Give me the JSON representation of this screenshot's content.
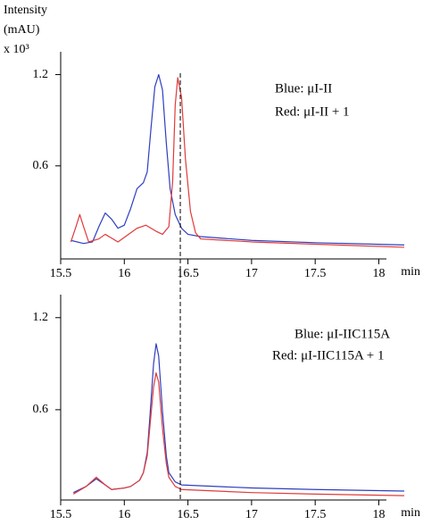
{
  "chart_data": [
    {
      "type": "line",
      "ylabel": [
        "Intensity",
        "(mAU)",
        "x 10³"
      ],
      "xlabel": "min",
      "xlim": [
        15.5,
        18.2
      ],
      "ylim": [
        0,
        1.35
      ],
      "xticks": [
        15.5,
        16,
        16.5,
        17,
        17.5,
        18
      ],
      "yticks": [
        0.6,
        1.2
      ],
      "reference_x": 16.44,
      "series": [
        {
          "name": "Blue: μI-II",
          "color": "#2e3fbf",
          "x": [
            15.58,
            15.68,
            15.75,
            15.8,
            15.85,
            15.9,
            15.95,
            16.0,
            16.05,
            16.1,
            16.15,
            16.18,
            16.21,
            16.24,
            16.27,
            16.3,
            16.33,
            16.36,
            16.4,
            16.45,
            16.5,
            16.6,
            17.0,
            17.5,
            18.2
          ],
          "values": [
            0.11,
            0.09,
            0.1,
            0.2,
            0.29,
            0.25,
            0.19,
            0.21,
            0.32,
            0.45,
            0.49,
            0.56,
            0.85,
            1.12,
            1.2,
            1.1,
            0.75,
            0.45,
            0.28,
            0.19,
            0.15,
            0.135,
            0.11,
            0.095,
            0.08
          ]
        },
        {
          "name": "Red:  μI-II + 1",
          "color": "#e03a3a",
          "x": [
            15.58,
            15.62,
            15.65,
            15.68,
            15.72,
            15.8,
            15.85,
            15.95,
            16.05,
            16.1,
            16.17,
            16.25,
            16.3,
            16.35,
            16.38,
            16.4,
            16.42,
            16.45,
            16.48,
            16.52,
            16.56,
            16.6,
            17.0,
            17.5,
            18.2
          ],
          "values": [
            0.1,
            0.2,
            0.28,
            0.2,
            0.1,
            0.12,
            0.15,
            0.1,
            0.16,
            0.19,
            0.21,
            0.17,
            0.15,
            0.2,
            0.5,
            1.0,
            1.18,
            1.05,
            0.65,
            0.3,
            0.16,
            0.12,
            0.1,
            0.085,
            0.065
          ]
        }
      ]
    },
    {
      "type": "line",
      "xlabel": "min",
      "xlim": [
        15.5,
        18.2
      ],
      "ylim": [
        0,
        1.35
      ],
      "xticks": [
        15.5,
        16,
        16.5,
        17,
        17.5,
        18
      ],
      "yticks": [
        0.6,
        1.2
      ],
      "series": [
        {
          "name": "Blue: μI-IIC115A",
          "color": "#2e3fbf",
          "x": [
            15.6,
            15.7,
            15.78,
            15.85,
            15.9,
            16.0,
            16.05,
            16.12,
            16.15,
            16.18,
            16.2,
            16.23,
            16.25,
            16.27,
            16.3,
            16.33,
            16.35,
            16.4,
            16.45,
            17.0,
            17.5,
            18.2
          ],
          "values": [
            0.06,
            0.1,
            0.15,
            0.11,
            0.08,
            0.09,
            0.1,
            0.14,
            0.19,
            0.32,
            0.54,
            0.9,
            1.03,
            0.95,
            0.59,
            0.3,
            0.19,
            0.13,
            0.11,
            0.09,
            0.08,
            0.07
          ]
        },
        {
          "name": "Red:  μI-IIC115A + 1",
          "color": "#e03a3a",
          "x": [
            15.6,
            15.7,
            15.78,
            15.85,
            15.9,
            16.0,
            16.05,
            16.12,
            16.15,
            16.18,
            16.2,
            16.23,
            16.25,
            16.27,
            16.3,
            16.33,
            16.35,
            16.4,
            16.45,
            17.0,
            17.5,
            18.2
          ],
          "values": [
            0.05,
            0.1,
            0.16,
            0.11,
            0.08,
            0.09,
            0.1,
            0.14,
            0.19,
            0.3,
            0.48,
            0.75,
            0.84,
            0.78,
            0.48,
            0.25,
            0.16,
            0.1,
            0.08,
            0.06,
            0.05,
            0.04
          ]
        }
      ]
    }
  ]
}
